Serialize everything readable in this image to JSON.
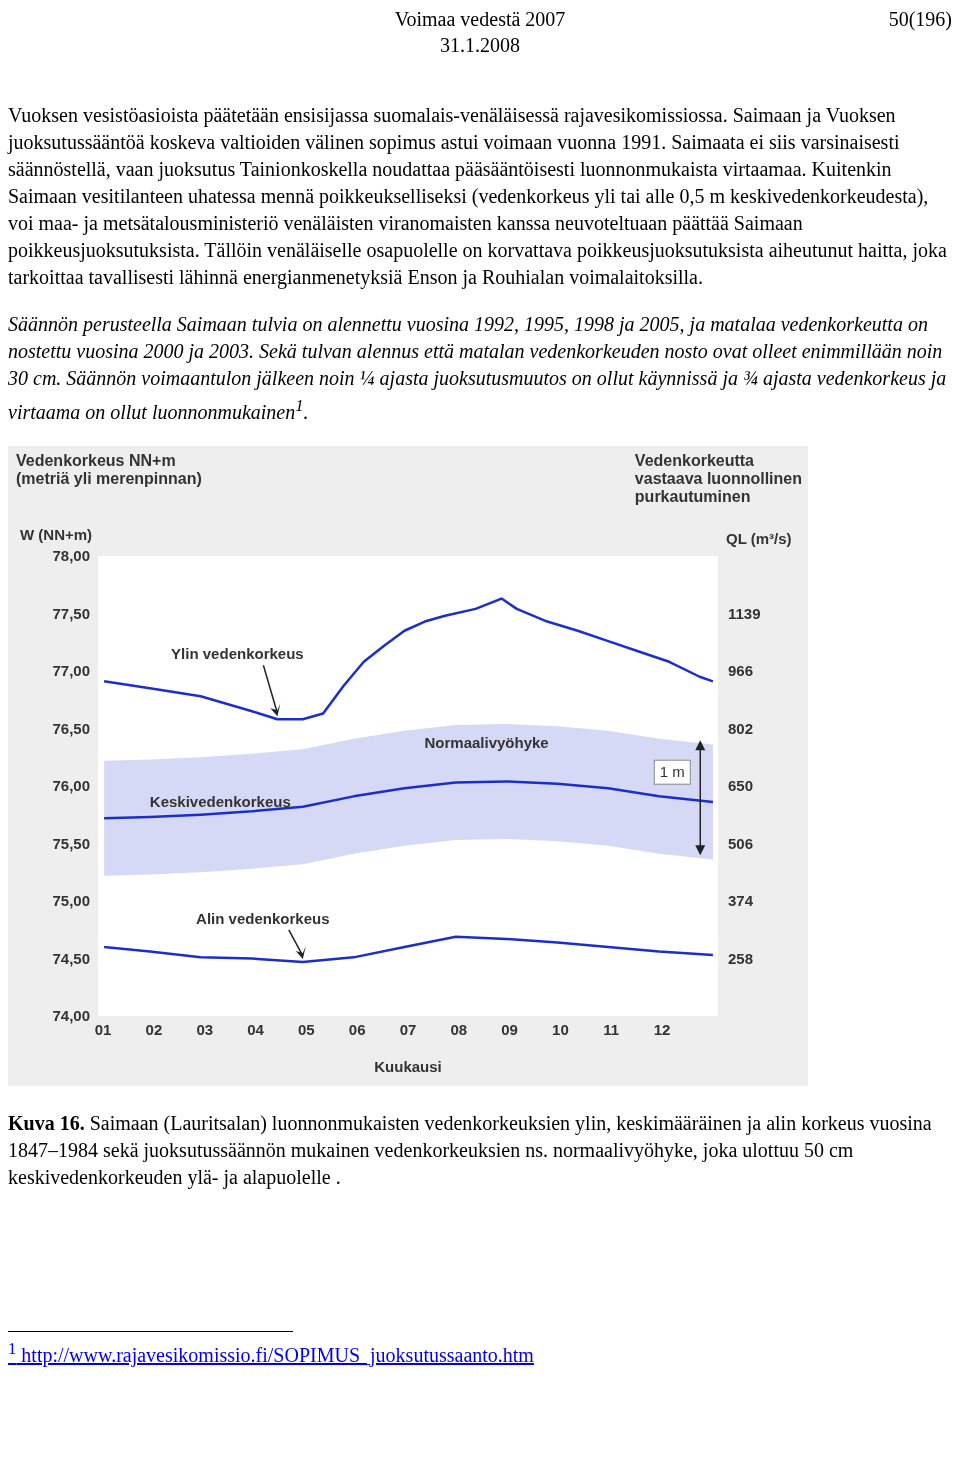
{
  "chart_data": {
    "type": "line",
    "title": "Vedenkorkeus NN+m\n(metriä yli merenpinnan)",
    "ylabel": "W (NN+m)",
    "y2label": "QL (m³/s)",
    "xlabel": "Kuukausi",
    "xlim": [
      0.9,
      13.1
    ],
    "xticks": [
      {
        "value": 1,
        "label": "01"
      },
      {
        "value": 2,
        "label": "02"
      },
      {
        "value": 3,
        "label": "03"
      },
      {
        "value": 4,
        "label": "04"
      },
      {
        "value": 5,
        "label": "05"
      },
      {
        "value": 6,
        "label": "06"
      },
      {
        "value": 7,
        "label": "07"
      },
      {
        "value": 8,
        "label": "08"
      },
      {
        "value": 9,
        "label": "09"
      },
      {
        "value": 10,
        "label": "10"
      },
      {
        "value": 11,
        "label": "11"
      },
      {
        "value": 12,
        "label": "12"
      }
    ],
    "ylim": [
      74,
      78
    ],
    "yticks": [
      {
        "value": 74,
        "label": "74,00"
      },
      {
        "value": 74.5,
        "label": "74,50"
      },
      {
        "value": 75,
        "label": "75,00"
      },
      {
        "value": 75.5,
        "label": "75,50"
      },
      {
        "value": 76,
        "label": "76,00"
      },
      {
        "value": 76.5,
        "label": "76,50"
      },
      {
        "value": 77,
        "label": "77,00"
      },
      {
        "value": 77.5,
        "label": "77,50"
      },
      {
        "value": 78,
        "label": "78,00"
      }
    ],
    "grid": false,
    "marker": "none",
    "line_style": "solid",
    "series": [
      {
        "name": "Ylin vedenkorkeus",
        "color": "#1a2ecc",
        "x": [
          1.02,
          1.92,
          2.92,
          3.93,
          4.43,
          4.93,
          5.33,
          5.73,
          6.13,
          6.53,
          6.93,
          7.33,
          7.73,
          8.33,
          8.84,
          9.14,
          9.74,
          10.34,
          10.94,
          11.54,
          12.14,
          12.74,
          13.0
        ],
        "values": [
          76.91,
          76.85,
          76.78,
          76.65,
          76.58,
          76.58,
          76.63,
          76.87,
          77.08,
          77.22,
          77.35,
          77.43,
          77.48,
          77.54,
          77.63,
          77.54,
          77.43,
          77.35,
          77.26,
          77.17,
          77.08,
          76.95,
          76.91
        ]
      },
      {
        "name": "Keskivedenkorkeus",
        "color": "#1a2ecc",
        "x": [
          1.02,
          1.92,
          2.92,
          3.93,
          4.93,
          5.93,
          6.93,
          7.94,
          8.94,
          9.94,
          10.94,
          11.94,
          13.0
        ],
        "values": [
          75.72,
          75.73,
          75.75,
          75.78,
          75.82,
          75.91,
          75.98,
          76.03,
          76.04,
          76.02,
          75.98,
          75.91,
          75.86
        ],
        "lower": [
          75.22,
          75.23,
          75.25,
          75.28,
          75.32,
          75.41,
          75.48,
          75.53,
          75.54,
          75.52,
          75.48,
          75.41,
          75.36
        ],
        "upper": [
          76.22,
          76.23,
          76.25,
          76.28,
          76.32,
          76.41,
          76.48,
          76.53,
          76.54,
          76.52,
          76.48,
          76.41,
          76.36
        ]
      },
      {
        "name": "Alin vedenkorkeus",
        "color": "#1a2ecc",
        "x": [
          1.02,
          1.92,
          2.92,
          3.93,
          4.93,
          5.93,
          6.93,
          7.94,
          8.94,
          9.94,
          10.94,
          11.94,
          13.0
        ],
        "values": [
          74.6,
          74.56,
          74.51,
          74.5,
          74.47,
          74.51,
          74.6,
          74.69,
          74.67,
          74.64,
          74.6,
          74.56,
          74.53
        ]
      }
    ],
    "annotations": [
      "Voimaa vedestä 2007",
      "31.1.2008",
      "50(196)",
      "Vuoksen vesistöasioista päätetään ensisijassa suomalais-venäläisessä rajavesikomissiossa. Saimaan ja Vuoksen juoksutussääntöä koskeva valtioiden välinen sopimus astui voimaan vuonna 1991. Saimaata ei siis varsinaisesti säännöstellä, vaan juoksutus Tainionkoskella noudattaa pääsääntöisesti luonnonmukaista virtaamaa. Kuitenkin Saimaan vesitilanteen uhatessa mennä poikkeukselliseksi (vedenkorkeus yli tai alle 0,5 m keskivedenkorkeudesta), voi maa- ja metsätalousministeriö venäläisten viranomaisten kanssa neuvoteltuaan päättää Saimaan poikkeusjuoksutuksista. Tällöin venäläiselle osapuolelle on korvattava poikkeusjuoksutuksista aiheutunut haitta, joka tarkoittaa tavallisesti lähinnä energianmenetyksiä Enson ja Rouhialan voimalaitoksilla.",
      "Säännön perusteella Saimaan tulvia on alennettu vuosina 1992, 1995, 1998 ja 2005, ja matalaa vedenkorkeutta on nostettu vuosina 2000 ja 2003. Sekä tulvan alennus että matalan vedenkorkeuden nosto ovat olleet enimmillään noin 30 cm. Säännön voimaantulon jälkeen noin ¼ ajasta juoksutusmuutos on ollut käynnissä ja ¾ ajasta vedenkorkeus ja virtaama on ollut luonnonmukainen$^{1}$.",
      "Vedenkorkeutta\nvastaava luonnollinen\npurkautuminen",
      "Kuva 16. Saimaan (Lauritsalan) luonnonmukaisten vedenkorkeuksien ylin, keskimääräinen ja alin korkeus vuosina 1847–1984 sekä juoksutussäännön mukainen vedenkorkeuksien ns. normaalivyöhyke, joka ulottuu 50 cm keskivedenkorkeuden ylä- ja alapuolelle .",
      "$^{1}$ http://www.rajavesikomissio.fi/SOPIMUS_juoksutussaanto.htm",
      "Normaalivyöhyke",
      "1139",
      "966",
      "802",
      "650",
      "506",
      "374",
      "258",
      {
        "text": "1 m",
        "x": 12.2,
        "y": 76.12
      }
    ]
  }
}
